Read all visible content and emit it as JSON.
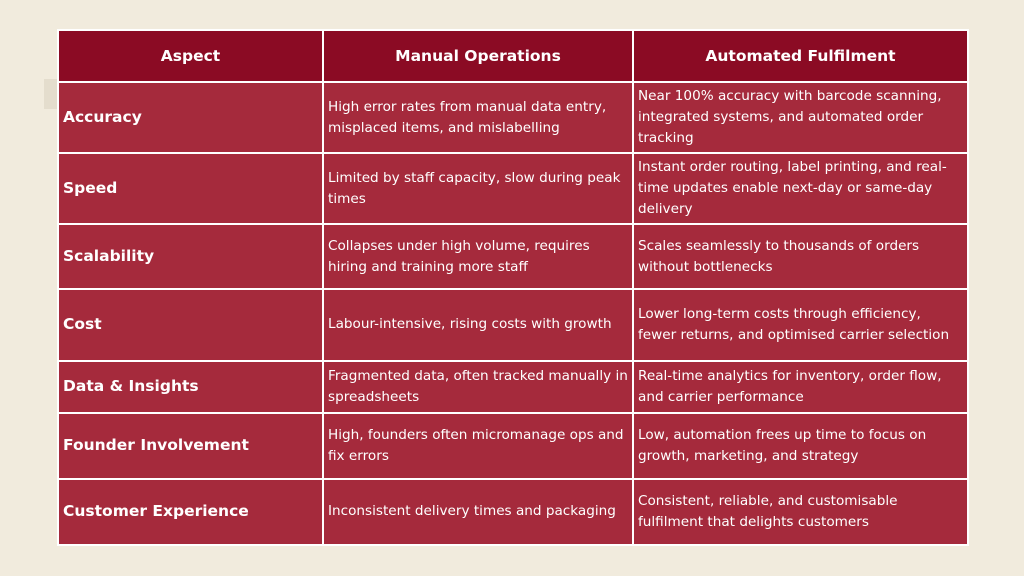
{
  "table": {
    "headers": [
      "Aspect",
      "Manual Operations",
      "Automated Fulfilment"
    ],
    "rows": [
      {
        "aspect": "Accuracy",
        "manual": "High error rates from manual data entry, misplaced items, and mislabelling",
        "automated": "Near 100% accuracy with barcode scanning, integrated systems, and automated order tracking"
      },
      {
        "aspect": "Speed",
        "manual": "Limited by staff capacity, slow during peak times",
        "automated": "Instant order routing, label printing, and real-time updates enable next-day or same-day delivery"
      },
      {
        "aspect": "Scalability",
        "manual": "Collapses under high volume, requires hiring and training more staff",
        "automated": "Scales seamlessly to thousands of orders without bottlenecks"
      },
      {
        "aspect": "Cost",
        "manual": "Labour-intensive, rising costs with growth",
        "automated": "Lower long-term costs through efficiency, fewer returns, and optimised carrier selection"
      },
      {
        "aspect": "Data & Insights",
        "manual": "Fragmented data, often tracked manually in spreadsheets",
        "automated": "Real-time analytics for inventory, order flow, and carrier performance"
      },
      {
        "aspect": "Founder Involvement",
        "manual": "High, founders often micromanage ops and fix errors",
        "automated": "Low, automation frees up time to focus on growth, marketing, and strategy"
      },
      {
        "aspect": "Customer Experience",
        "manual": "Inconsistent delivery times and packaging",
        "automated": "Consistent, reliable, and customisable fulfilment that delights customers"
      }
    ]
  }
}
